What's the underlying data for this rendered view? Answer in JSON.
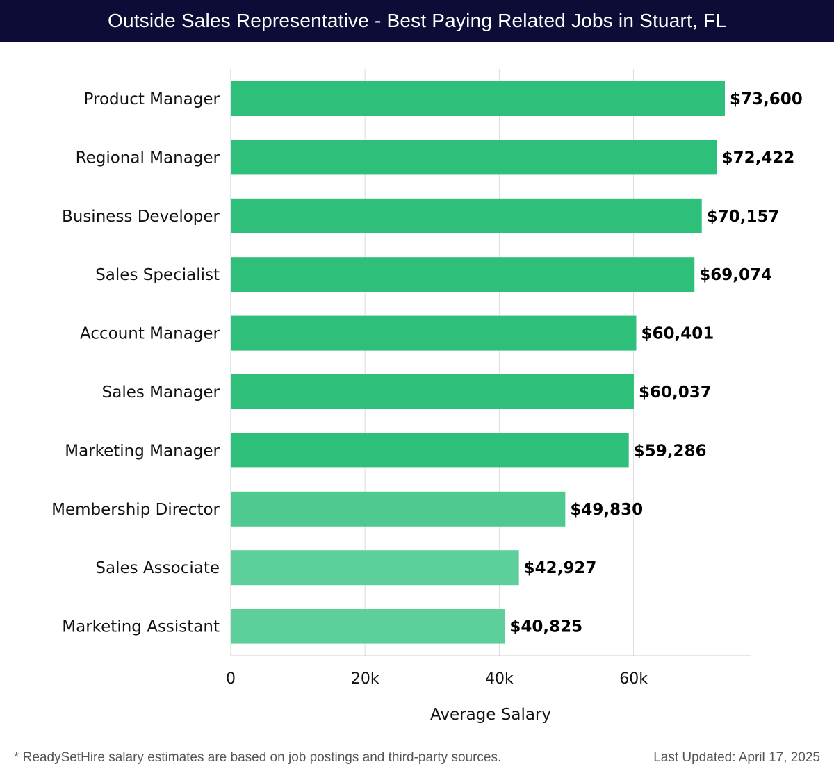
{
  "header": {
    "title": "Outside Sales Representative - Best Paying Related Jobs in Stuart, FL"
  },
  "footer": {
    "note": "* ReadySetHire salary estimates are based on job postings and third-party sources.",
    "updated": "Last Updated: April 17, 2025"
  },
  "colors": {
    "header_bg": "#0c0c36",
    "bar_high": "#2ec07a",
    "bar_mid": "#4ec98f",
    "bar_low": "#5ccf9a",
    "grid": "#dddddd"
  },
  "chart_data": {
    "type": "bar",
    "orientation": "horizontal",
    "title": "Outside Sales Representative - Best Paying Related Jobs in Stuart, FL",
    "xlabel": "Average Salary",
    "ylabel": "",
    "xlim": [
      0,
      77000
    ],
    "xticks": [
      0,
      20000,
      40000,
      60000
    ],
    "xtick_labels": [
      "0",
      "20k",
      "40k",
      "60k"
    ],
    "grid": true,
    "categories": [
      "Product Manager",
      "Regional Manager",
      "Business Developer",
      "Sales Specialist",
      "Account Manager",
      "Sales Manager",
      "Marketing Manager",
      "Membership Director",
      "Sales Associate",
      "Marketing Assistant"
    ],
    "values": [
      73600,
      72422,
      70157,
      69074,
      60401,
      60037,
      59286,
      49830,
      42927,
      40825
    ],
    "value_labels": [
      "$73,600",
      "$72,422",
      "$70,157",
      "$69,074",
      "$60,401",
      "$60,037",
      "$59,286",
      "$49,830",
      "$42,927",
      "$40,825"
    ]
  }
}
